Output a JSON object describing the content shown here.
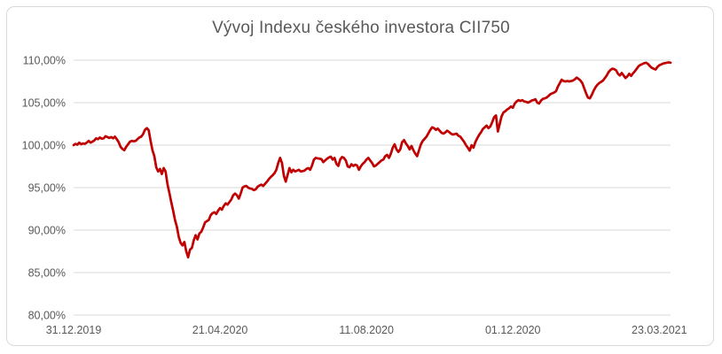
{
  "chart": {
    "colors": {
      "line": "#C00000",
      "gridline": "#D9D9D9",
      "axis_text": "#595959",
      "title_text": "#595959",
      "frame_border": "#D9D9D9",
      "background": "#FFFFFF"
    }
  },
  "chart_data": {
    "type": "line",
    "title": "Vývoj Indexu českého investora CII750",
    "legend": "none",
    "grid": "horizontal",
    "y_axis": {
      "unit": "%",
      "range": [
        80,
        110
      ],
      "tick_values": [
        110,
        105,
        100,
        95,
        90,
        85,
        80
      ],
      "tick_labels": [
        "110,00%",
        "105,00%",
        "100,00%",
        "95,00%",
        "90,00%",
        "85,00%",
        "80,00%"
      ]
    },
    "x_axis": {
      "type": "category-date",
      "total_points": 319,
      "tick_indices": [
        0,
        78,
        156,
        234,
        312
      ],
      "tick_labels": [
        "31.12.2019",
        "21.04.2020",
        "11.08.2020",
        "01.12.2020",
        "23.03.2021"
      ]
    },
    "series": [
      {
        "name": "CII750",
        "color": "#C00000",
        "values": [
          100,
          100.15,
          100.05,
          100.3,
          100.1,
          100.2,
          100.15,
          100.3,
          100.5,
          100.3,
          100.4,
          100.55,
          100.8,
          100.7,
          100.9,
          100.75,
          100.8,
          101.05,
          100.95,
          100.85,
          100.95,
          100.8,
          101,
          100.7,
          100.35,
          99.8,
          99.55,
          99.4,
          99.8,
          100.1,
          100.4,
          100.5,
          100.45,
          100.5,
          100.7,
          100.9,
          101,
          101.3,
          101.8,
          102,
          101.75,
          100.5,
          99.4,
          98.7,
          97.4,
          96.9,
          97.2,
          96.6,
          97.3,
          96.9,
          95.4,
          94.4,
          93.3,
          92.3,
          91.2,
          90.4,
          89.2,
          88.5,
          88.2,
          88.6,
          87.5,
          86.8,
          87.7,
          87.9,
          88.8,
          89.4,
          88.9,
          89.6,
          89.8,
          90.3,
          90.9,
          91.05,
          91.2,
          91.75,
          92,
          92.1,
          91.9,
          92.3,
          92.6,
          92.4,
          92.85,
          93.15,
          93,
          93.3,
          93.6,
          94.1,
          94.3,
          94.1,
          93.7,
          94.3,
          95,
          95.15,
          95.2,
          95,
          94.9,
          94.85,
          94.7,
          94.8,
          95.1,
          95.25,
          95.35,
          95.2,
          95.45,
          95.7,
          96,
          96.25,
          96.45,
          96.7,
          97.1,
          97.9,
          98.5,
          97.9,
          96.4,
          95.7,
          96.5,
          97.3,
          96.8,
          97.1,
          96.9,
          97,
          97.1,
          96.9,
          96.95,
          97,
          97.2,
          97.3,
          97.1,
          97.6,
          98.3,
          98.5,
          98.45,
          98.4,
          98.35,
          98,
          98.2,
          98.4,
          98.55,
          98.65,
          98.3,
          98.5,
          97.8,
          97.55,
          98.3,
          98.6,
          98.5,
          98.2,
          97.5,
          97.4,
          97.75,
          97.55,
          97.7,
          97.6,
          97.1,
          97.5,
          97.8,
          98,
          98.3,
          98.5,
          98.2,
          97.9,
          97.5,
          97.6,
          97.8,
          98,
          98.2,
          98.3,
          98.7,
          98.85,
          98.5,
          99,
          99.7,
          100.1,
          99.5,
          99.2,
          99.5,
          100.35,
          100.6,
          100.2,
          99.9,
          99.5,
          99.9,
          99.4,
          99,
          98.7,
          99.4,
          100.1,
          100.5,
          100.75,
          101,
          101.4,
          101.8,
          102.1,
          102,
          101.8,
          101.95,
          101.7,
          101.45,
          101.35,
          101.5,
          101.7,
          101.55,
          101.35,
          101.25,
          101.3,
          101.35,
          101.1,
          101,
          100.7,
          100.4,
          100,
          99.7,
          99.35,
          100,
          99.7,
          100.35,
          100.8,
          101.2,
          101.5,
          101.9,
          102.1,
          102.3,
          102,
          102.2,
          102.7,
          103.3,
          103.5,
          101.6,
          102.5,
          103.4,
          103.85,
          104,
          104.2,
          104.35,
          104.55,
          104.4,
          104.9,
          105.15,
          105.3,
          105.2,
          105.3,
          105.15,
          105.1,
          105,
          105.1,
          105.25,
          105.3,
          105.4,
          105,
          104.9,
          105.25,
          105.45,
          105.5,
          105.6,
          105.8,
          106,
          106.1,
          106.2,
          106.35,
          106.9,
          107.3,
          107.7,
          107.55,
          107.5,
          107.55,
          107.5,
          107.55,
          107.6,
          107.75,
          107.95,
          107.8,
          107.6,
          107.3,
          106.7,
          106.1,
          105.6,
          105.5,
          105.9,
          106.4,
          106.8,
          107.1,
          107.3,
          107.45,
          107.6,
          107.9,
          108.2,
          108.6,
          108.85,
          109,
          108.95,
          108.8,
          108.4,
          108.2,
          108.5,
          108.2,
          107.9,
          108.1,
          108.4,
          108.15,
          108.45,
          108.7,
          109,
          109.3,
          109.45,
          109.55,
          109.65,
          109.7,
          109.55,
          109.3,
          109.1,
          109,
          108.9,
          109.2,
          109.4,
          109.5,
          109.6,
          109.65,
          109.7,
          109.75,
          109.7
        ]
      }
    ]
  }
}
